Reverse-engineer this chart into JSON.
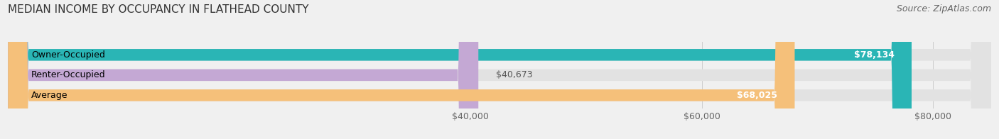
{
  "title": "MEDIAN INCOME BY OCCUPANCY IN FLATHEAD COUNTY",
  "source": "Source: ZipAtlas.com",
  "categories": [
    "Owner-Occupied",
    "Renter-Occupied",
    "Average"
  ],
  "values": [
    78134,
    40673,
    68025
  ],
  "bar_colors": [
    "#2ab5b5",
    "#c4a8d4",
    "#f5c07a"
  ],
  "bar_labels": [
    "$78,134",
    "$40,673",
    "$68,025"
  ],
  "background_color": "#f0f0f0",
  "bar_bg_color": "#e2e2e2",
  "xlim": [
    0,
    85000
  ],
  "xticks": [
    40000,
    60000,
    80000
  ],
  "xtick_labels": [
    "$40,000",
    "$60,000",
    "$80,000"
  ],
  "title_fontsize": 11,
  "source_fontsize": 9,
  "label_fontsize": 9,
  "bar_height": 0.58
}
